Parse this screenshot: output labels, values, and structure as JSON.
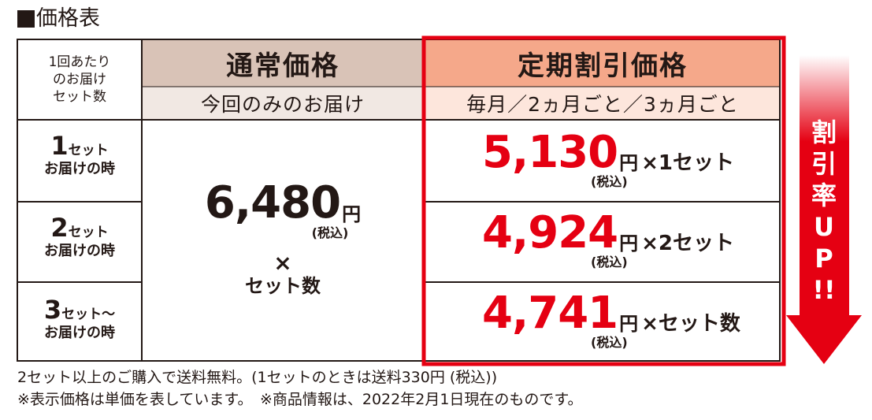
{
  "title": "価格表",
  "corner_lines": [
    "1回あたり",
    "のお届け",
    "セット数"
  ],
  "normal": {
    "heading": "通常価格",
    "subheading": "今回のみのお届け",
    "price": "6,480",
    "yen": "円",
    "tax": "(税込)",
    "times": "×",
    "per": "セット数"
  },
  "subscription": {
    "heading": "定期割引価格",
    "subheading": "毎月／2ヵ月ごと／3ヵ月ごと"
  },
  "rows": [
    {
      "num": "1",
      "set": "セット",
      "sub": "お届けの時",
      "price": "5,130",
      "yen": "円",
      "mult": "×1セット",
      "tax": "(税込)"
    },
    {
      "num": "2",
      "set": "セット",
      "sub": "お届けの時",
      "price": "4,924",
      "yen": "円",
      "mult": "×2セット",
      "tax": "(税込)"
    },
    {
      "num": "3",
      "set": "セット～",
      "sub": "お届けの時",
      "price": "4,741",
      "yen": "円",
      "mult": "×セット数",
      "tax": "(税込)"
    }
  ],
  "arrow_text": [
    "割",
    "引",
    "率",
    "U",
    "P",
    "!!"
  ],
  "footer": [
    "2セット以上のご購入で送料無料。(1セットのときは送料330円 (税込))",
    "※表示価格は単価を表しています。　※商品情報は、2022年2月1日現在のものです。"
  ],
  "colors": {
    "accent_red": "#e50012",
    "normal_header_bg": "#d9c3b7",
    "normal_sub_bg": "#f1e8e3",
    "sub_header_bg": "#f5a88a",
    "sub_sub_bg": "#fde6dc",
    "border": "#231815"
  }
}
